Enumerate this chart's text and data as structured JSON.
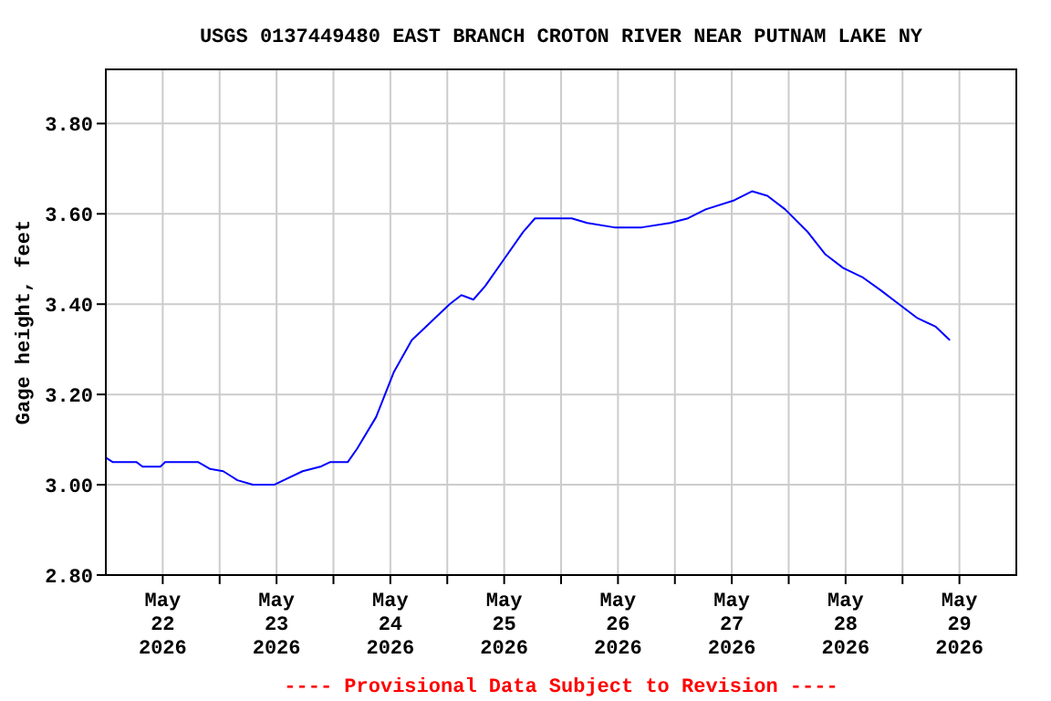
{
  "chart_data": {
    "type": "line",
    "title": "USGS 0137449480 EAST BRANCH CROTON RIVER NEAR PUTNAM LAKE NY",
    "ylabel": "Gage height, feet",
    "annotations": [
      "---- Provisional Data Subject to Revision ----"
    ],
    "xlim": [
      "2026-05-22T00:00",
      "2026-05-30T00:00"
    ],
    "xticks": [
      {
        "value": "2026-05-22T12:00",
        "label": "May\n22\n2026"
      },
      {
        "value": "2026-05-23T12:00",
        "label": "May\n23\n2026"
      },
      {
        "value": "2026-05-24T12:00",
        "label": "May\n24\n2026"
      },
      {
        "value": "2026-05-25T12:00",
        "label": "May\n25\n2026"
      },
      {
        "value": "2026-05-26T12:00",
        "label": "May\n26\n2026"
      },
      {
        "value": "2026-05-27T12:00",
        "label": "May\n27\n2026"
      },
      {
        "value": "2026-05-28T12:00",
        "label": "May\n28\n2026"
      },
      {
        "value": "2026-05-29T12:00",
        "label": "May\n29\n2026"
      },
      {
        "value": "2026-05-23T00:00",
        "label": null
      },
      {
        "value": "2026-05-24T00:00",
        "label": null
      },
      {
        "value": "2026-05-25T00:00",
        "label": null
      },
      {
        "value": "2026-05-26T00:00",
        "label": null
      },
      {
        "value": "2026-05-27T00:00",
        "label": null
      },
      {
        "value": "2026-05-28T00:00",
        "label": null
      },
      {
        "value": "2026-05-29T00:00",
        "label": null
      }
    ],
    "ylim": [
      2.8,
      3.92
    ],
    "yticks": [
      {
        "value": 2.8,
        "label": "2.80"
      },
      {
        "value": 3.0,
        "label": "3.00"
      },
      {
        "value": 3.2,
        "label": "3.20"
      },
      {
        "value": 3.4,
        "label": "3.40"
      },
      {
        "value": 3.6,
        "label": "3.60"
      },
      {
        "value": 3.8,
        "label": "3.80"
      }
    ],
    "grid": true,
    "line_style": "solid",
    "series": [
      {
        "color": "#0000ff",
        "x": [
          "2026-05-22T00:00",
          "2026-05-22T01:30",
          "2026-05-22T06:30",
          "2026-05-22T07:45",
          "2026-05-22T11:30",
          "2026-05-22T12:30",
          "2026-05-22T19:30",
          "2026-05-22T22:00",
          "2026-05-23T00:45",
          "2026-05-23T03:45",
          "2026-05-23T07:00",
          "2026-05-23T11:30",
          "2026-05-23T13:30",
          "2026-05-23T17:30",
          "2026-05-23T21:15",
          "2026-05-23T23:15",
          "2026-05-24T03:00",
          "2026-05-24T05:00",
          "2026-05-24T09:00",
          "2026-05-24T12:45",
          "2026-05-24T16:30",
          "2026-05-24T20:30",
          "2026-05-25T00:30",
          "2026-05-25T03:00",
          "2026-05-25T05:30",
          "2026-05-25T08:00",
          "2026-05-25T12:00",
          "2026-05-25T16:00",
          "2026-05-25T18:30",
          "2026-05-26T02:15",
          "2026-05-26T05:30",
          "2026-05-26T11:15",
          "2026-05-26T17:00",
          "2026-05-26T23:00",
          "2026-05-27T02:45",
          "2026-05-27T06:30",
          "2026-05-27T12:30",
          "2026-05-27T16:15",
          "2026-05-27T19:30",
          "2026-05-27T23:15",
          "2026-05-28T04:00",
          "2026-05-28T07:45",
          "2026-05-28T11:30",
          "2026-05-28T15:30",
          "2026-05-28T19:30",
          "2026-05-28T23:15",
          "2026-05-29T03:00",
          "2026-05-29T07:00",
          "2026-05-29T10:00"
        ],
        "values": [
          3.06,
          3.05,
          3.05,
          3.04,
          3.04,
          3.05,
          3.05,
          3.035,
          3.03,
          3.01,
          3.0,
          3.0,
          3.01,
          3.03,
          3.04,
          3.05,
          3.05,
          3.08,
          3.15,
          3.25,
          3.32,
          3.36,
          3.4,
          3.42,
          3.41,
          3.44,
          3.5,
          3.56,
          3.59,
          3.59,
          3.58,
          3.57,
          3.57,
          3.58,
          3.59,
          3.61,
          3.63,
          3.65,
          3.64,
          3.61,
          3.56,
          3.51,
          3.48,
          3.46,
          3.43,
          3.4,
          3.37,
          3.35,
          3.32
        ]
      }
    ]
  }
}
